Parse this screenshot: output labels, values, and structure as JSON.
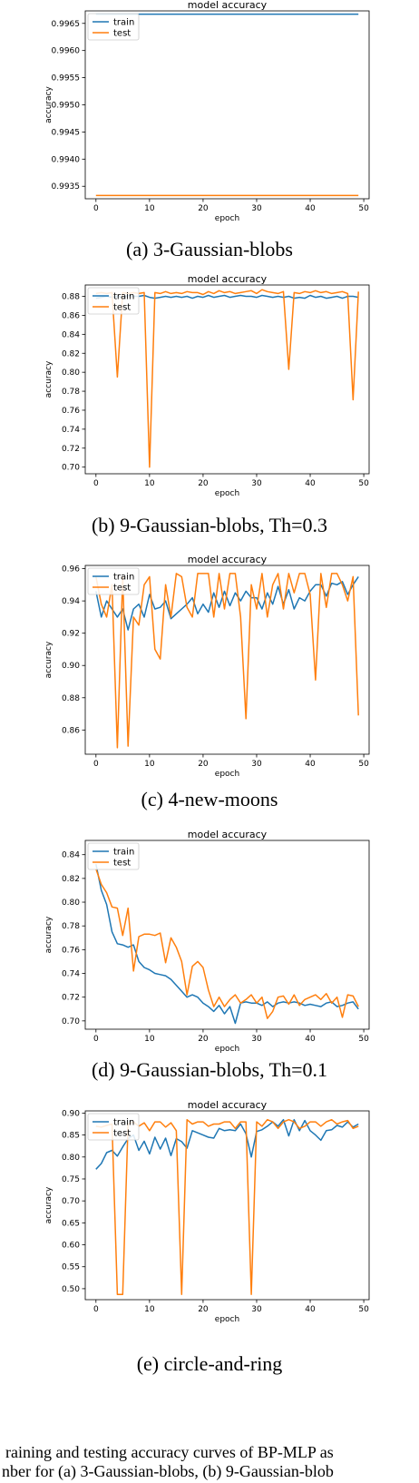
{
  "chart_data": [
    {
      "type": "line",
      "title": "model accuracy",
      "xlabel": "epoch",
      "ylabel": "accuracy",
      "xlim": [
        -2,
        51
      ],
      "ylim": [
        0.99327,
        0.99673
      ],
      "xticks": [
        0,
        10,
        20,
        30,
        40,
        50
      ],
      "yticks": [
        0.9935,
        0.994,
        0.9945,
        0.995,
        0.9955,
        0.996,
        0.9965
      ],
      "ytick_labels": [
        "0.9935",
        "0.9940",
        "0.9945",
        "0.9950",
        "0.9955",
        "0.9960",
        "0.9965"
      ],
      "legend": "upper-left",
      "series": [
        {
          "name": "train",
          "color": "#1f77b4",
          "x": [
            0,
            49
          ],
          "values": [
            0.99667,
            0.99667
          ]
        },
        {
          "name": "test",
          "color": "#ff7f0e",
          "x": [
            0,
            49
          ],
          "values": [
            0.99333,
            0.99333
          ]
        }
      ]
    },
    {
      "type": "line",
      "title": "model accuracy",
      "xlabel": "epoch",
      "ylabel": "accuracy",
      "xlim": [
        -2,
        51
      ],
      "ylim": [
        0.693,
        0.892
      ],
      "xticks": [
        0,
        10,
        20,
        30,
        40,
        50
      ],
      "yticks": [
        0.7,
        0.72,
        0.74,
        0.76,
        0.78,
        0.8,
        0.82,
        0.84,
        0.86,
        0.88
      ],
      "ytick_labels": [
        "0.70",
        "0.72",
        "0.74",
        "0.76",
        "0.78",
        "0.80",
        "0.82",
        "0.84",
        "0.86",
        "0.88"
      ],
      "legend": "upper-left",
      "series": [
        {
          "name": "train",
          "color": "#1f77b4",
          "values": [
            0.878,
            0.879,
            0.88,
            0.879,
            0.88,
            0.879,
            0.881,
            0.88,
            0.88,
            0.881,
            0.879,
            0.878,
            0.879,
            0.88,
            0.879,
            0.88,
            0.879,
            0.88,
            0.878,
            0.88,
            0.879,
            0.881,
            0.879,
            0.88,
            0.881,
            0.879,
            0.88,
            0.881,
            0.88,
            0.88,
            0.879,
            0.881,
            0.88,
            0.879,
            0.88,
            0.879,
            0.88,
            0.878,
            0.879,
            0.878,
            0.881,
            0.879,
            0.88,
            0.878,
            0.879,
            0.88,
            0.878,
            0.88,
            0.88,
            0.879
          ]
        },
        {
          "name": "test",
          "color": "#ff7f0e",
          "values": [
            0.883,
            0.884,
            0.883,
            0.884,
            0.795,
            0.884,
            0.883,
            0.884,
            0.883,
            0.884,
            0.7,
            0.884,
            0.883,
            0.885,
            0.883,
            0.884,
            0.883,
            0.885,
            0.884,
            0.884,
            0.882,
            0.885,
            0.883,
            0.886,
            0.884,
            0.885,
            0.883,
            0.884,
            0.885,
            0.886,
            0.883,
            0.887,
            0.885,
            0.884,
            0.883,
            0.885,
            0.803,
            0.884,
            0.883,
            0.885,
            0.884,
            0.886,
            0.884,
            0.885,
            0.883,
            0.884,
            0.885,
            0.883,
            0.771,
            0.885
          ]
        }
      ]
    },
    {
      "type": "line",
      "title": "model accuracy",
      "xlabel": "epoch",
      "ylabel": "accuracy",
      "xlim": [
        -2,
        51
      ],
      "ylim": [
        0.845,
        0.962
      ],
      "xticks": [
        0,
        10,
        20,
        30,
        40,
        50
      ],
      "yticks": [
        0.86,
        0.88,
        0.9,
        0.92,
        0.94,
        0.96
      ],
      "ytick_labels": [
        "0.86",
        "0.88",
        "0.90",
        "0.92",
        "0.94",
        "0.96"
      ],
      "legend": "upper-left",
      "series": [
        {
          "name": "train",
          "color": "#1f77b4",
          "values": [
            0.946,
            0.93,
            0.94,
            0.935,
            0.93,
            0.935,
            0.922,
            0.935,
            0.938,
            0.93,
            0.944,
            0.935,
            0.936,
            0.94,
            0.929,
            0.932,
            0.935,
            0.938,
            0.942,
            0.932,
            0.938,
            0.933,
            0.945,
            0.936,
            0.946,
            0.937,
            0.945,
            0.94,
            0.946,
            0.942,
            0.942,
            0.935,
            0.945,
            0.938,
            0.949,
            0.938,
            0.947,
            0.935,
            0.942,
            0.94,
            0.946,
            0.95,
            0.95,
            0.943,
            0.951,
            0.95,
            0.952,
            0.944,
            0.95,
            0.955
          ]
        },
        {
          "name": "test",
          "color": "#ff7f0e",
          "values": [
            0.955,
            0.938,
            0.93,
            0.95,
            0.849,
            0.955,
            0.85,
            0.93,
            0.925,
            0.95,
            0.955,
            0.91,
            0.904,
            0.95,
            0.93,
            0.957,
            0.955,
            0.936,
            0.93,
            0.957,
            0.957,
            0.957,
            0.93,
            0.957,
            0.935,
            0.957,
            0.957,
            0.93,
            0.867,
            0.95,
            0.935,
            0.957,
            0.93,
            0.95,
            0.957,
            0.935,
            0.957,
            0.945,
            0.957,
            0.957,
            0.944,
            0.891,
            0.957,
            0.936,
            0.957,
            0.957,
            0.95,
            0.94,
            0.955,
            0.869
          ]
        }
      ]
    },
    {
      "type": "line",
      "title": "model accuracy",
      "xlabel": "epoch",
      "ylabel": "accuracy",
      "xlim": [
        -2,
        51
      ],
      "ylim": [
        0.693,
        0.852
      ],
      "xticks": [
        0,
        10,
        20,
        30,
        40,
        50
      ],
      "yticks": [
        0.7,
        0.72,
        0.74,
        0.76,
        0.78,
        0.8,
        0.82,
        0.84
      ],
      "ytick_labels": [
        "0.70",
        "0.72",
        "0.74",
        "0.76",
        "0.78",
        "0.80",
        "0.82",
        "0.84"
      ],
      "legend": "upper-left",
      "series": [
        {
          "name": "train",
          "color": "#1f77b4",
          "values": [
            0.832,
            0.81,
            0.798,
            0.775,
            0.765,
            0.764,
            0.762,
            0.764,
            0.75,
            0.745,
            0.743,
            0.74,
            0.739,
            0.738,
            0.735,
            0.73,
            0.725,
            0.72,
            0.722,
            0.72,
            0.715,
            0.712,
            0.708,
            0.713,
            0.706,
            0.712,
            0.698,
            0.715,
            0.716,
            0.715,
            0.715,
            0.713,
            0.716,
            0.712,
            0.715,
            0.716,
            0.715,
            0.716,
            0.715,
            0.713,
            0.714,
            0.713,
            0.712,
            0.715,
            0.716,
            0.712,
            0.713,
            0.715,
            0.716,
            0.71
          ]
        },
        {
          "name": "test",
          "color": "#ff7f0e",
          "values": [
            0.828,
            0.815,
            0.808,
            0.796,
            0.795,
            0.772,
            0.795,
            0.742,
            0.771,
            0.773,
            0.773,
            0.772,
            0.774,
            0.749,
            0.77,
            0.762,
            0.75,
            0.722,
            0.746,
            0.75,
            0.745,
            0.726,
            0.712,
            0.72,
            0.712,
            0.718,
            0.722,
            0.715,
            0.718,
            0.722,
            0.715,
            0.72,
            0.702,
            0.708,
            0.72,
            0.721,
            0.714,
            0.722,
            0.713,
            0.718,
            0.72,
            0.722,
            0.718,
            0.723,
            0.715,
            0.72,
            0.703,
            0.722,
            0.721,
            0.712
          ]
        }
      ]
    },
    {
      "type": "line",
      "title": "model accuracy",
      "xlabel": "epoch",
      "ylabel": "accuracy",
      "xlim": [
        -2,
        51
      ],
      "ylim": [
        0.475,
        0.905
      ],
      "xticks": [
        0,
        10,
        20,
        30,
        40,
        50
      ],
      "yticks": [
        0.5,
        0.55,
        0.6,
        0.65,
        0.7,
        0.75,
        0.8,
        0.85,
        0.9
      ],
      "ytick_labels": [
        "0.50",
        "0.55",
        "0.60",
        "0.65",
        "0.70",
        "0.75",
        "0.80",
        "0.85",
        "0.90"
      ],
      "legend": "upper-left",
      "series": [
        {
          "name": "train",
          "color": "#1f77b4",
          "values": [
            0.772,
            0.785,
            0.81,
            0.815,
            0.802,
            0.823,
            0.842,
            0.85,
            0.815,
            0.836,
            0.807,
            0.845,
            0.818,
            0.843,
            0.803,
            0.842,
            0.835,
            0.82,
            0.86,
            0.855,
            0.85,
            0.845,
            0.843,
            0.865,
            0.86,
            0.862,
            0.86,
            0.875,
            0.853,
            0.8,
            0.858,
            0.862,
            0.87,
            0.88,
            0.87,
            0.885,
            0.848,
            0.885,
            0.86,
            0.883,
            0.86,
            0.85,
            0.838,
            0.86,
            0.862,
            0.872,
            0.868,
            0.88,
            0.868,
            0.875
          ]
        },
        {
          "name": "test",
          "color": "#ff7f0e",
          "values": [
            0.87,
            0.868,
            0.872,
            0.875,
            0.487,
            0.487,
            0.875,
            0.88,
            0.87,
            0.878,
            0.86,
            0.88,
            0.88,
            0.868,
            0.878,
            0.86,
            0.487,
            0.885,
            0.875,
            0.88,
            0.88,
            0.87,
            0.875,
            0.875,
            0.88,
            0.88,
            0.865,
            0.88,
            0.88,
            0.487,
            0.88,
            0.87,
            0.885,
            0.88,
            0.865,
            0.88,
            0.885,
            0.88,
            0.865,
            0.87,
            0.88,
            0.88,
            0.87,
            0.88,
            0.885,
            0.875,
            0.88,
            0.883,
            0.865,
            0.87
          ]
        }
      ]
    }
  ],
  "captions": [
    "(a) 3-Gaussian-blobs",
    "(b) 9-Gaussian-blobs, Th=0.3",
    "(c) 4-new-moons",
    "(d) 9-Gaussian-blobs, Th=0.1",
    "(e) circle-and-ring"
  ],
  "figure_caption": {
    "line1": "raining and testing accuracy curves of BP-MLP as",
    "line2": "nber for (a) 3-Gaussian-blobs, (b) 9-Gaussian-blob"
  }
}
